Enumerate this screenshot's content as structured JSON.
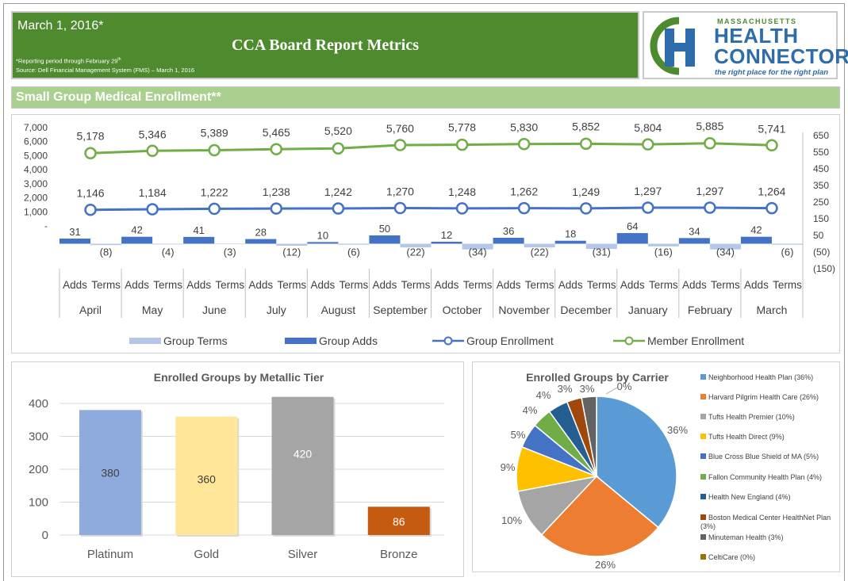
{
  "header": {
    "date": "March 1, 2016*",
    "title": "CCA Board Report Metrics",
    "note_line1": "*Reporting period through February 29",
    "note_sup": "th",
    "note_line2": "Source: Dell Financial Management System (FMS) – March 1, 2016"
  },
  "logo": {
    "line1": "MASSACHUSETTS",
    "line2": "HEALTH",
    "line3": "CONNECTOR",
    "tagline": "the right place for the right plan",
    "colors": {
      "green": "#4e8a2e",
      "blue": "#2f6cab"
    }
  },
  "section_title": "Small Group Medical Enrollment**",
  "colors": {
    "header_bg": "#4e8a2e",
    "section_bg": "#a9d08e",
    "group_terms": "#b4c7e7",
    "group_adds": "#4472c4",
    "group_enrollment": "#4472c4",
    "member_enrollment": "#70ad47"
  },
  "chart_data": [
    {
      "type": "line",
      "categories": [
        "April",
        "May",
        "June",
        "July",
        "August",
        "September",
        "October",
        "November",
        "December",
        "January",
        "February",
        "March"
      ],
      "subcategories": [
        "Adds",
        "Terms"
      ],
      "series": [
        {
          "name": "Member Enrollment",
          "axis": "left",
          "values": [
            5178,
            5346,
            5389,
            5465,
            5520,
            5760,
            5778,
            5830,
            5852,
            5804,
            5885,
            5741
          ],
          "labels": [
            "5,178",
            "5,346",
            "5,389",
            "5,465",
            "5,520",
            "5,760",
            "5,778",
            "5,830",
            "5,852",
            "5,804",
            "5,885",
            "5,741"
          ]
        },
        {
          "name": "Group Enrollment",
          "axis": "left",
          "values": [
            1146,
            1184,
            1222,
            1238,
            1242,
            1270,
            1248,
            1262,
            1249,
            1297,
            1297,
            1264
          ],
          "labels": [
            "1,146",
            "1,184",
            "1,222",
            "1,238",
            "1,242",
            "1,270",
            "1,248",
            "1,262",
            "1,249",
            "1,297",
            "1,297",
            "1,264"
          ]
        },
        {
          "name": "Group Adds",
          "type": "bar",
          "axis": "right",
          "values": [
            31,
            42,
            41,
            28,
            10,
            50,
            12,
            36,
            18,
            64,
            34,
            42
          ],
          "labels": [
            "31",
            "42",
            "41",
            "28",
            "10",
            "50",
            "12",
            "36",
            "18",
            "64",
            "34",
            "42"
          ]
        },
        {
          "name": "Group Terms",
          "type": "bar",
          "axis": "right",
          "values": [
            -8,
            -4,
            -3,
            -12,
            -6,
            -22,
            -34,
            -22,
            -31,
            -16,
            -34,
            -6
          ],
          "labels": [
            "(8)",
            "(4)",
            "(3)",
            "(12)",
            "(6)",
            "(22)",
            "(34)",
            "(22)",
            "(31)",
            "(16)",
            "(34)",
            "(6)"
          ]
        }
      ],
      "left_axis": {
        "ticks": [
          "7,000",
          "6,000",
          "5,000",
          "4,000",
          "3,000",
          "2,000",
          "1,000",
          "-"
        ],
        "ylim": [
          0,
          7000
        ]
      },
      "right_axis": {
        "ticks": [
          "650",
          "550",
          "450",
          "350",
          "250",
          "150",
          "50",
          "(50)",
          "(150)"
        ],
        "ylim": [
          -150,
          650
        ]
      },
      "legend": [
        "Group Terms",
        "Group Adds",
        "Group Enrollment",
        "Member Enrollment"
      ],
      "legend_position": "bottom"
    },
    {
      "type": "bar",
      "title": "Enrolled Groups by Metallic Tier",
      "categories": [
        "Platinum",
        "Gold",
        "Silver",
        "Bronze"
      ],
      "values": [
        380,
        360,
        420,
        86
      ],
      "colors": [
        "#8faadc",
        "#ffe699",
        "#a5a5a5",
        "#c55a11"
      ],
      "ticks": [
        "400",
        "300",
        "200",
        "100",
        "0"
      ],
      "ylim": [
        0,
        400
      ],
      "grid": true
    },
    {
      "type": "pie",
      "title": "Enrolled Groups by Carrier",
      "labels": [
        "Neighborhood Health Plan (36%)",
        "Harvard Pilgrim Health Care (26%)",
        "Tufts Health Premier (10%)",
        "Tufts Health Direct (9%)",
        "Blue Cross Blue Shield of MA (5%)",
        "Fallon Community Health Plan (4%)",
        "Health New England (4%)",
        "Boston Medical Center HealthNet Plan (3%)",
        "Minuteman Health (3%)",
        "CeltiCare (0%)"
      ],
      "values": [
        36,
        26,
        10,
        9,
        5,
        4,
        4,
        3,
        3,
        0
      ],
      "pct_labels": [
        "36%",
        "26%",
        "10%",
        "9%",
        "5%",
        "4%",
        "4%",
        "3%",
        "3%",
        "0%"
      ],
      "colors": [
        "#5b9bd5",
        "#ed7d31",
        "#a5a5a5",
        "#ffc000",
        "#4472c4",
        "#70ad47",
        "#255e91",
        "#9e480e",
        "#636363",
        "#997300"
      ],
      "legend_position": "right"
    }
  ]
}
